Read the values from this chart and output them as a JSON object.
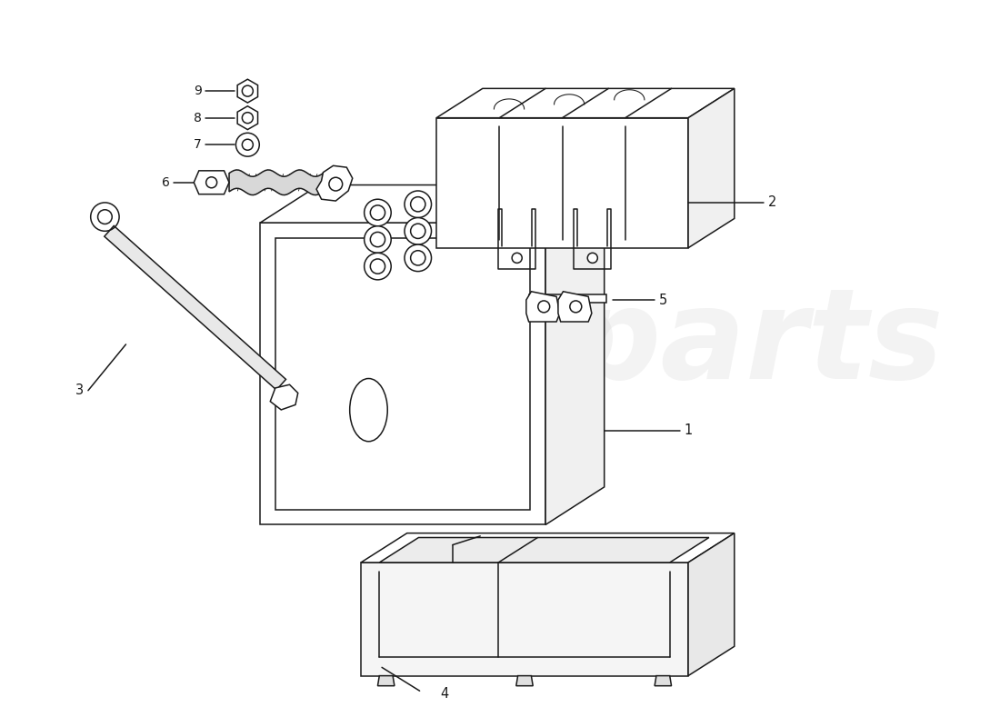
{
  "background_color": "#ffffff",
  "line_color": "#1a1a1a",
  "line_width": 1.1,
  "watermark_color": "#e0e0e0",
  "watermark_color2": "#e8e8c0",
  "label_fontsize": 10.5,
  "fig_w": 11.0,
  "fig_h": 8.0,
  "xlim": [
    0,
    11
  ],
  "ylim": [
    0,
    8
  ]
}
